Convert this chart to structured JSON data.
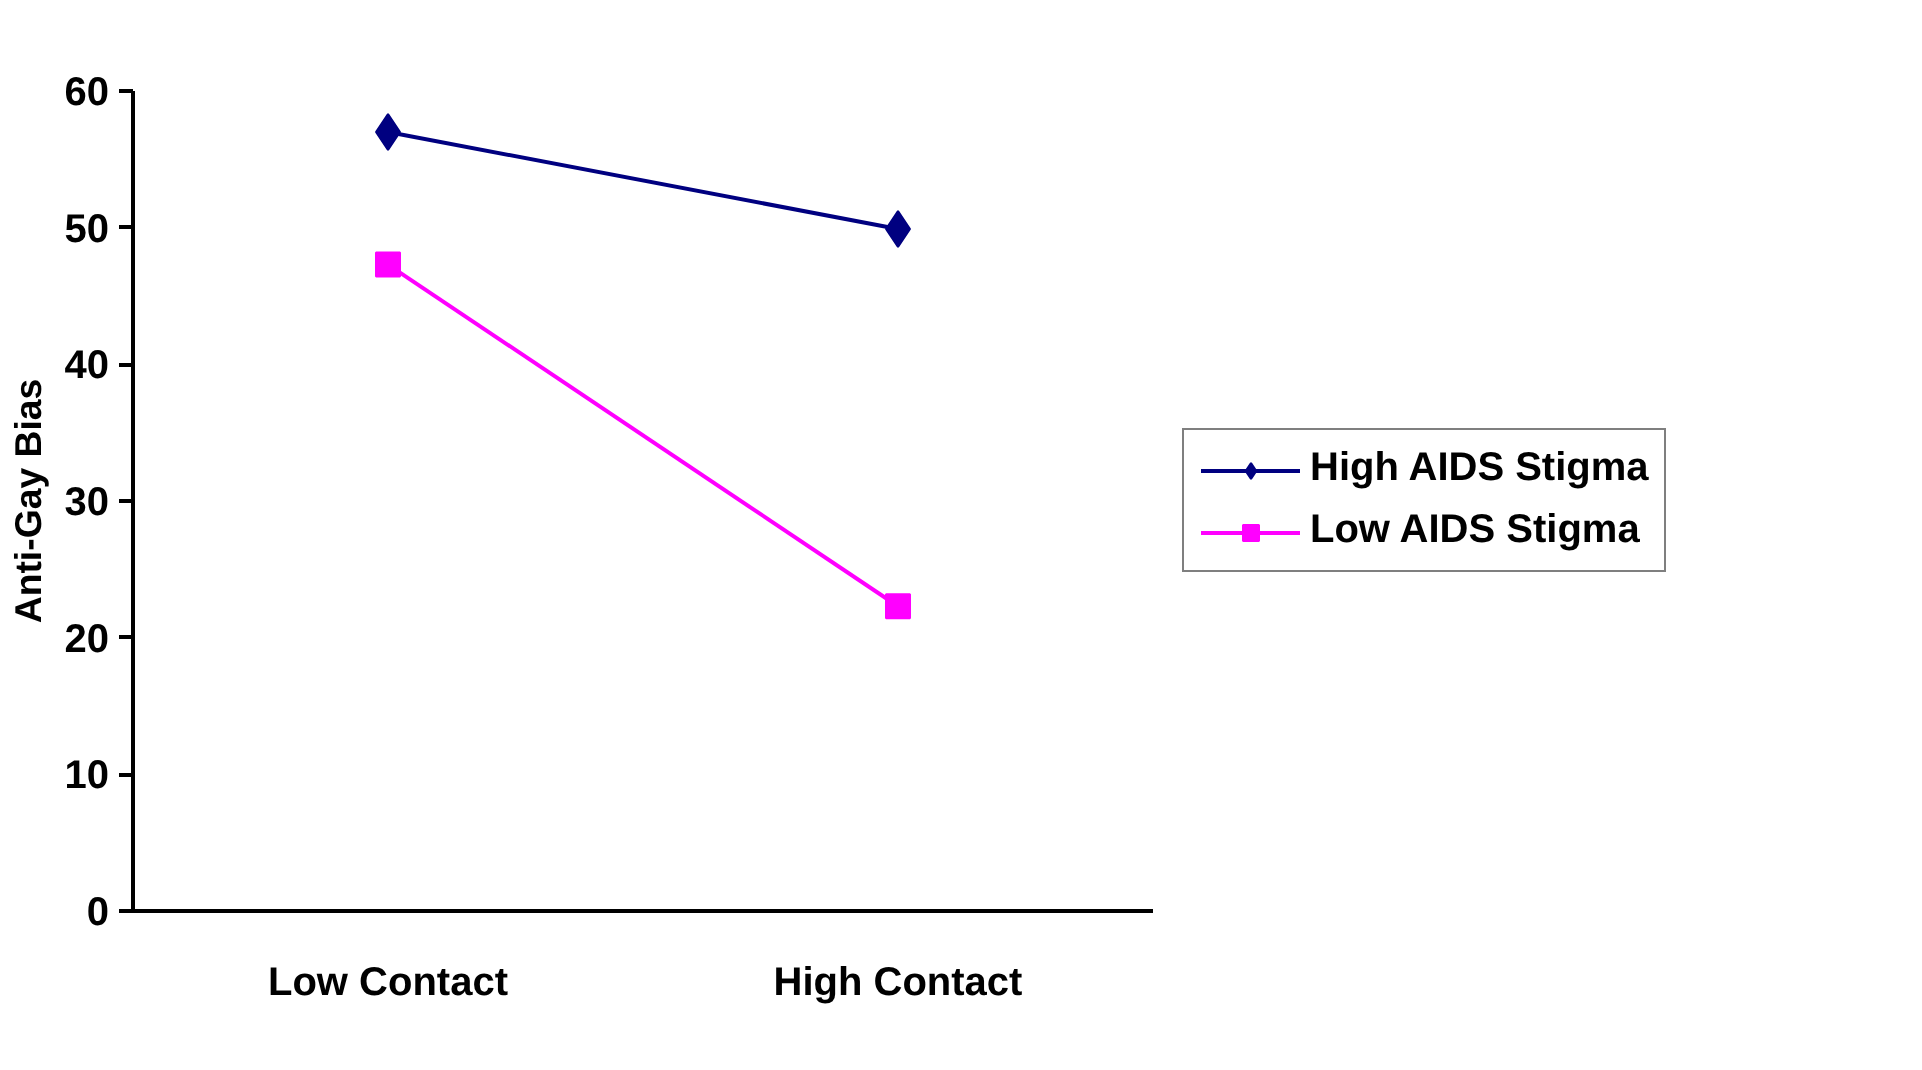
{
  "chart_data": {
    "type": "line",
    "ylabel": "Anti-Gay Bias",
    "categories": [
      "Low Contact",
      "High Contact"
    ],
    "series": [
      {
        "name": "High AIDS Stigma",
        "color": "#000080",
        "marker": "diamond",
        "values": [
          57.0,
          49.9
        ]
      },
      {
        "name": "Low AIDS Stigma",
        "color": "#ff00ff",
        "marker": "square",
        "values": [
          47.3,
          22.3
        ]
      }
    ],
    "ylim": [
      0,
      60
    ],
    "yticks": [
      0,
      10,
      20,
      30,
      40,
      50,
      60
    ],
    "grid": false,
    "legend": "right",
    "line_style": "solid"
  }
}
